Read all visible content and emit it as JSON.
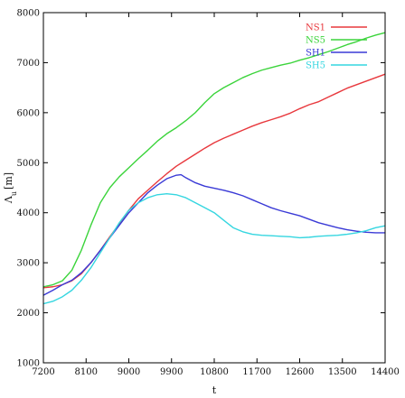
{
  "chart_data": {
    "type": "line",
    "title": "",
    "xlabel": "t",
    "ylabel_main": "Λ",
    "ylabel_sub": "u",
    "ylabel_unit": "[m]",
    "xlim": [
      7200,
      14400
    ],
    "ylim": [
      1000,
      8000
    ],
    "xticks": [
      7200,
      8100,
      9000,
      9900,
      10800,
      11700,
      12600,
      13500,
      14400
    ],
    "yticks": [
      1000,
      2000,
      3000,
      4000,
      5000,
      6000,
      7000,
      8000
    ],
    "grid": false,
    "legend_position": "top-right",
    "series": [
      {
        "name": "NS1",
        "color": "#e8383d",
        "x": [
          7200,
          7400,
          7600,
          7800,
          8000,
          8200,
          8400,
          8600,
          8800,
          9000,
          9200,
          9400,
          9600,
          9800,
          10000,
          10200,
          10400,
          10600,
          10800,
          11000,
          11200,
          11400,
          11600,
          11800,
          12000,
          12200,
          12400,
          12600,
          12800,
          13000,
          13200,
          13400,
          13600,
          13800,
          14000,
          14200,
          14400
        ],
        "values": [
          2500,
          2520,
          2560,
          2640,
          2780,
          3000,
          3250,
          3520,
          3780,
          4050,
          4280,
          4450,
          4620,
          4780,
          4930,
          5050,
          5170,
          5290,
          5400,
          5490,
          5570,
          5650,
          5730,
          5800,
          5860,
          5920,
          5990,
          6080,
          6160,
          6220,
          6310,
          6400,
          6490,
          6560,
          6630,
          6700,
          6770
        ]
      },
      {
        "name": "NS5",
        "color": "#3bd43b",
        "x": [
          7200,
          7400,
          7600,
          7800,
          8000,
          8200,
          8400,
          8600,
          8800,
          9000,
          9200,
          9400,
          9600,
          9800,
          10000,
          10200,
          10400,
          10600,
          10800,
          11000,
          11200,
          11400,
          11600,
          11800,
          12000,
          12200,
          12400,
          12600,
          12800,
          13000,
          13200,
          13400,
          13600,
          13800,
          14000,
          14200,
          14400
        ],
        "values": [
          2520,
          2560,
          2640,
          2850,
          3250,
          3750,
          4200,
          4500,
          4720,
          4900,
          5080,
          5250,
          5430,
          5580,
          5700,
          5840,
          6000,
          6200,
          6380,
          6500,
          6600,
          6700,
          6780,
          6850,
          6900,
          6950,
          6990,
          7050,
          7100,
          7160,
          7220,
          7290,
          7360,
          7420,
          7490,
          7550,
          7600
        ]
      },
      {
        "name": "SH1",
        "color": "#3a3ad6",
        "x": [
          7200,
          7400,
          7600,
          7800,
          8000,
          8200,
          8400,
          8600,
          8800,
          9000,
          9200,
          9400,
          9600,
          9800,
          10000,
          10100,
          10200,
          10400,
          10600,
          10800,
          11000,
          11200,
          11400,
          11600,
          11800,
          12000,
          12200,
          12400,
          12600,
          12800,
          13000,
          13200,
          13400,
          13600,
          13800,
          14000,
          14200,
          14400
        ],
        "values": [
          2350,
          2450,
          2560,
          2650,
          2800,
          3000,
          3250,
          3500,
          3750,
          4000,
          4200,
          4400,
          4550,
          4680,
          4750,
          4760,
          4700,
          4600,
          4530,
          4490,
          4450,
          4400,
          4340,
          4260,
          4180,
          4100,
          4040,
          3990,
          3940,
          3870,
          3800,
          3750,
          3700,
          3660,
          3630,
          3610,
          3600,
          3600
        ]
      },
      {
        "name": "SH5",
        "color": "#35d6e0",
        "x": [
          7200,
          7400,
          7600,
          7800,
          8000,
          8200,
          8400,
          8600,
          8800,
          9000,
          9200,
          9400,
          9600,
          9800,
          10000,
          10200,
          10400,
          10600,
          10800,
          11000,
          11200,
          11400,
          11600,
          11800,
          12000,
          12200,
          12400,
          12600,
          12800,
          13000,
          13200,
          13400,
          13600,
          13800,
          14000,
          14200,
          14400
        ],
        "values": [
          2180,
          2230,
          2320,
          2450,
          2650,
          2900,
          3200,
          3500,
          3800,
          4050,
          4200,
          4300,
          4360,
          4380,
          4360,
          4300,
          4200,
          4100,
          4000,
          3850,
          3700,
          3620,
          3570,
          3550,
          3540,
          3530,
          3520,
          3500,
          3510,
          3530,
          3540,
          3550,
          3570,
          3600,
          3640,
          3700,
          3740
        ]
      }
    ]
  }
}
